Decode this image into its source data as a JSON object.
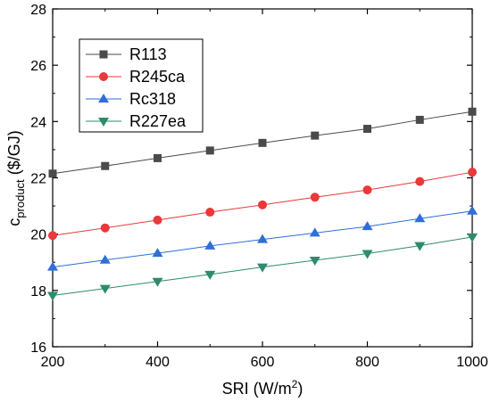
{
  "chart_data": {
    "type": "line",
    "x": [
      200,
      300,
      400,
      500,
      600,
      700,
      800,
      900,
      1000
    ],
    "series": [
      {
        "name": "R113",
        "color": "#4a4a4a",
        "marker": "square",
        "values": [
          22.15,
          22.42,
          22.7,
          22.97,
          23.24,
          23.5,
          23.74,
          24.06,
          24.35
        ]
      },
      {
        "name": "R245ca",
        "color": "#e8393b",
        "marker": "circle",
        "values": [
          19.95,
          20.22,
          20.5,
          20.78,
          21.04,
          21.31,
          21.57,
          21.87,
          22.2
        ]
      },
      {
        "name": "Rc318",
        "color": "#2f6fd6",
        "marker": "triangle-up",
        "values": [
          18.83,
          19.08,
          19.32,
          19.58,
          19.81,
          20.04,
          20.27,
          20.55,
          20.82
        ]
      },
      {
        "name": "R227ea",
        "color": "#2e8b6e",
        "marker": "triangle-down",
        "values": [
          17.82,
          18.07,
          18.32,
          18.57,
          18.83,
          19.07,
          19.31,
          19.59,
          19.9
        ]
      }
    ],
    "xlim": [
      200,
      1000
    ],
    "ylim": [
      16,
      28
    ],
    "xticks": [
      200,
      400,
      600,
      800,
      1000
    ],
    "yticks": [
      16,
      18,
      20,
      22,
      24,
      26,
      28
    ],
    "xlabel": {
      "main": "SRI (W/m",
      "sup": "2",
      "end": ")"
    },
    "ylabel": {
      "main": "c",
      "sub": "product",
      "end": " ($/GJ)"
    },
    "legend": "top-left",
    "grid": false
  }
}
